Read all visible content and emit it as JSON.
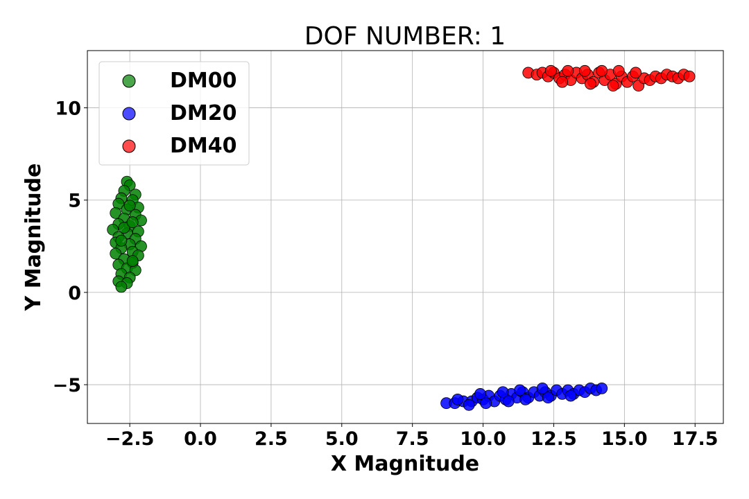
{
  "chart_data": {
    "type": "scatter",
    "title": "DOF NUMBER: 1",
    "xlabel": "X Magnitude",
    "ylabel": "Y Magnitude",
    "xlim": [
      -4.0,
      18.5
    ],
    "ylim": [
      -7.1,
      13.1
    ],
    "xticks": [
      -2.5,
      0.0,
      2.5,
      5.0,
      7.5,
      10.0,
      12.5,
      15.0,
      17.5
    ],
    "xtick_labels": [
      "−2.5",
      "0.0",
      "2.5",
      "5.0",
      "7.5",
      "10.0",
      "12.5",
      "15.0",
      "17.5"
    ],
    "yticks": [
      -5,
      0,
      5,
      10
    ],
    "ytick_labels": [
      "−5",
      "0",
      "5",
      "10"
    ],
    "grid": true,
    "legend_position": "top-left",
    "series": [
      {
        "name": "DM00",
        "color": "#008000",
        "points": [
          [
            -2.6,
            6.0
          ],
          [
            -2.5,
            5.8
          ],
          [
            -2.7,
            5.5
          ],
          [
            -2.3,
            5.3
          ],
          [
            -2.8,
            5.1
          ],
          [
            -2.4,
            5.0
          ],
          [
            -2.9,
            4.8
          ],
          [
            -2.2,
            4.6
          ],
          [
            -2.6,
            4.5
          ],
          [
            -3.0,
            4.3
          ],
          [
            -2.3,
            4.2
          ],
          [
            -2.7,
            4.0
          ],
          [
            -2.1,
            3.9
          ],
          [
            -2.9,
            3.7
          ],
          [
            -2.5,
            3.6
          ],
          [
            -3.1,
            3.4
          ],
          [
            -2.2,
            3.3
          ],
          [
            -2.6,
            3.2
          ],
          [
            -2.9,
            3.0
          ],
          [
            -2.3,
            2.9
          ],
          [
            -3.0,
            2.7
          ],
          [
            -2.5,
            2.6
          ],
          [
            -2.1,
            2.5
          ],
          [
            -2.8,
            2.4
          ],
          [
            -2.4,
            2.2
          ],
          [
            -3.0,
            2.1
          ],
          [
            -2.2,
            2.0
          ],
          [
            -2.7,
            1.8
          ],
          [
            -2.4,
            1.6
          ],
          [
            -2.9,
            1.5
          ],
          [
            -2.6,
            1.3
          ],
          [
            -2.3,
            1.2
          ],
          [
            -2.8,
            1.0
          ],
          [
            -2.5,
            0.8
          ],
          [
            -2.9,
            0.6
          ],
          [
            -2.6,
            0.5
          ],
          [
            -2.8,
            0.3
          ],
          [
            -2.4,
            1.7
          ],
          [
            -2.7,
            3.5
          ],
          [
            -2.5,
            4.7
          ],
          [
            -2.8,
            2.8
          ],
          [
            -2.4,
            3.8
          ]
        ]
      },
      {
        "name": "DM20",
        "color": "#0000ff",
        "points": [
          [
            8.7,
            -6.0
          ],
          [
            9.0,
            -6.0
          ],
          [
            9.3,
            -5.9
          ],
          [
            9.1,
            -5.8
          ],
          [
            9.6,
            -5.9
          ],
          [
            9.8,
            -5.7
          ],
          [
            10.0,
            -5.8
          ],
          [
            10.2,
            -5.6
          ],
          [
            10.4,
            -5.9
          ],
          [
            10.6,
            -5.6
          ],
          [
            10.8,
            -5.8
          ],
          [
            11.0,
            -5.5
          ],
          [
            11.2,
            -5.7
          ],
          [
            11.4,
            -5.4
          ],
          [
            11.6,
            -5.7
          ],
          [
            11.8,
            -5.4
          ],
          [
            12.0,
            -5.6
          ],
          [
            12.2,
            -5.4
          ],
          [
            12.4,
            -5.6
          ],
          [
            12.6,
            -5.3
          ],
          [
            12.8,
            -5.5
          ],
          [
            13.0,
            -5.3
          ],
          [
            13.2,
            -5.5
          ],
          [
            13.4,
            -5.3
          ],
          [
            13.6,
            -5.4
          ],
          [
            13.8,
            -5.2
          ],
          [
            14.0,
            -5.3
          ],
          [
            14.2,
            -5.2
          ],
          [
            9.5,
            -6.1
          ],
          [
            10.1,
            -6.0
          ],
          [
            10.9,
            -5.9
          ],
          [
            11.5,
            -5.8
          ],
          [
            12.3,
            -5.7
          ],
          [
            13.1,
            -5.6
          ],
          [
            9.9,
            -5.5
          ],
          [
            10.7,
            -5.4
          ],
          [
            11.3,
            -5.3
          ],
          [
            12.1,
            -5.2
          ]
        ]
      },
      {
        "name": "DM40",
        "color": "#ff0000",
        "points": [
          [
            11.6,
            11.9
          ],
          [
            11.9,
            11.8
          ],
          [
            12.1,
            11.9
          ],
          [
            12.3,
            11.7
          ],
          [
            12.5,
            11.9
          ],
          [
            12.7,
            11.6
          ],
          [
            12.9,
            11.8
          ],
          [
            13.1,
            11.5
          ],
          [
            13.3,
            11.9
          ],
          [
            13.5,
            11.6
          ],
          [
            13.7,
            11.8
          ],
          [
            13.9,
            11.4
          ],
          [
            14.1,
            11.9
          ],
          [
            14.3,
            11.5
          ],
          [
            14.5,
            11.8
          ],
          [
            14.7,
            11.3
          ],
          [
            14.9,
            11.7
          ],
          [
            15.1,
            11.4
          ],
          [
            15.3,
            11.7
          ],
          [
            15.5,
            11.2
          ],
          [
            15.7,
            11.6
          ],
          [
            15.9,
            11.5
          ],
          [
            16.1,
            11.7
          ],
          [
            16.3,
            11.6
          ],
          [
            16.5,
            11.8
          ],
          [
            16.7,
            11.7
          ],
          [
            16.9,
            11.6
          ],
          [
            17.1,
            11.8
          ],
          [
            17.3,
            11.7
          ],
          [
            12.4,
            12.0
          ],
          [
            13.0,
            12.0
          ],
          [
            13.6,
            12.0
          ],
          [
            14.2,
            12.0
          ],
          [
            14.8,
            12.0
          ],
          [
            15.4,
            11.9
          ],
          [
            12.8,
            11.4
          ],
          [
            13.8,
            11.3
          ],
          [
            14.6,
            11.2
          ]
        ]
      }
    ]
  }
}
